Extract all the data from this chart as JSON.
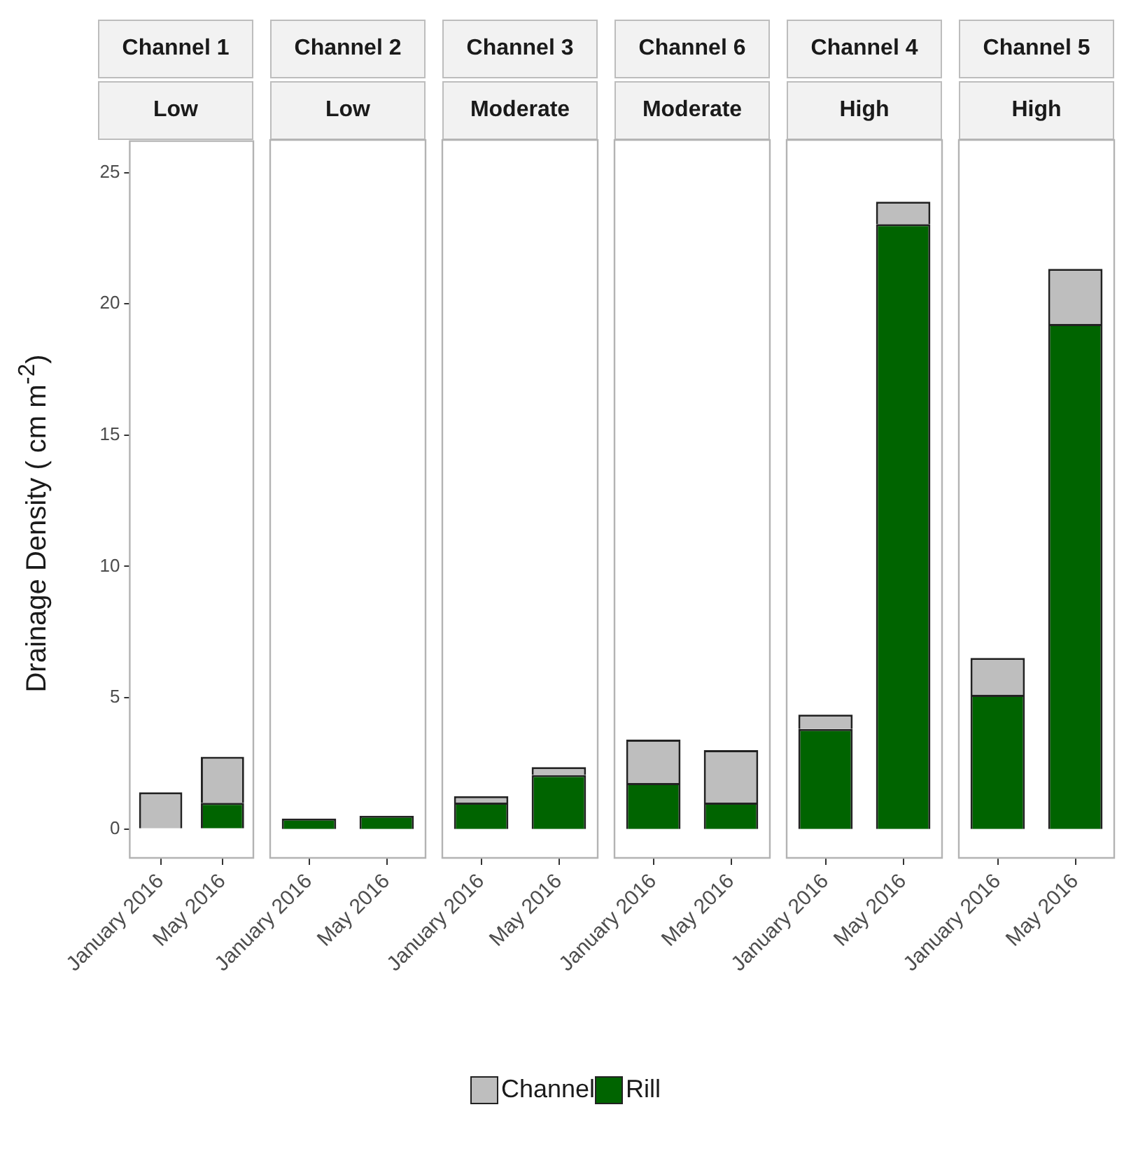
{
  "chart_data": [
    {
      "type": "bar",
      "title": "Channel 1",
      "subtitle": "Low",
      "ylabel": "Drainage Density ( cm m$^{-2}$)",
      "categories": [
        "January 2016",
        "May 2016"
      ],
      "stacked": true,
      "ylim": [
        -1.1,
        26.2
      ],
      "yticks": [
        0,
        5,
        10,
        15,
        20,
        25
      ],
      "legend": "bottom",
      "series": [
        {
          "name": "Rill",
          "color": "#006400",
          "values": [
            0,
            1.0
          ]
        },
        {
          "name": "Channel",
          "color": "#bebebe",
          "values": [
            1.4,
            1.75
          ]
        }
      ]
    },
    {
      "type": "bar",
      "title": "Channel 2",
      "subtitle": "Low",
      "categories": [
        "January 2016",
        "May 2016"
      ],
      "stacked": true,
      "ylim": [
        -1.1,
        26.2
      ],
      "tick_labels": "x",
      "series": [
        {
          "color": "#006400",
          "values": [
            0.4,
            0.5
          ]
        },
        {
          "color": "#bebebe",
          "values": [
            0,
            0
          ]
        }
      ]
    },
    {
      "type": "bar",
      "title": "Channel 3",
      "subtitle": "Moderate",
      "categories": [
        "January 2016",
        "May 2016"
      ],
      "stacked": true,
      "ylim": [
        -1.1,
        26.2
      ],
      "tick_labels": "x",
      "series": [
        {
          "color": "#006400",
          "values": [
            1.0,
            2.05
          ]
        },
        {
          "color": "#bebebe",
          "values": [
            0.25,
            0.3
          ]
        }
      ]
    },
    {
      "type": "bar",
      "title": "Channel 6",
      "subtitle": "Moderate",
      "categories": [
        "January 2016",
        "May 2016"
      ],
      "stacked": true,
      "ylim": [
        -1.1,
        26.2
      ],
      "tick_labels": "x",
      "series": [
        {
          "color": "#006400",
          "values": [
            1.75,
            1.0
          ]
        },
        {
          "color": "#bebebe",
          "values": [
            1.65,
            2.0
          ]
        }
      ]
    },
    {
      "type": "bar",
      "title": "Channel 4",
      "subtitle": "High",
      "categories": [
        "January 2016",
        "May 2016"
      ],
      "stacked": true,
      "ylim": [
        -1.1,
        26.2
      ],
      "tick_labels": "x",
      "series": [
        {
          "color": "#006400",
          "values": [
            3.8,
            23.0
          ]
        },
        {
          "color": "#bebebe",
          "values": [
            0.55,
            0.85
          ]
        }
      ]
    },
    {
      "type": "bar",
      "title": "Channel 5",
      "subtitle": "High",
      "categories": [
        "January 2016",
        "May 2016"
      ],
      "stacked": true,
      "ylim": [
        -1.1,
        26.2
      ],
      "tick_labels": "x",
      "series": [
        {
          "color": "#006400",
          "values": [
            5.1,
            19.2
          ]
        },
        {
          "color": "#bebebe",
          "values": [
            1.4,
            2.1
          ]
        }
      ]
    }
  ]
}
